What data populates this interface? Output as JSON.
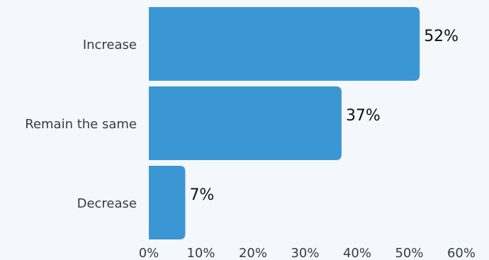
{
  "chart_data": {
    "type": "bar",
    "orientation": "horizontal",
    "categories": [
      "Increase",
      "Remain the same",
      "Decrease"
    ],
    "values": [
      52,
      37,
      7
    ],
    "value_labels": [
      "52%",
      "37%",
      "7%"
    ],
    "xlim": [
      0,
      60
    ],
    "x_ticks": [
      0,
      10,
      20,
      30,
      40,
      50,
      60
    ],
    "x_tick_labels": [
      "0%",
      "10%",
      "20%",
      "30%",
      "40%",
      "50%",
      "60%"
    ],
    "grid": false,
    "bar_color": "#3b97d3"
  }
}
